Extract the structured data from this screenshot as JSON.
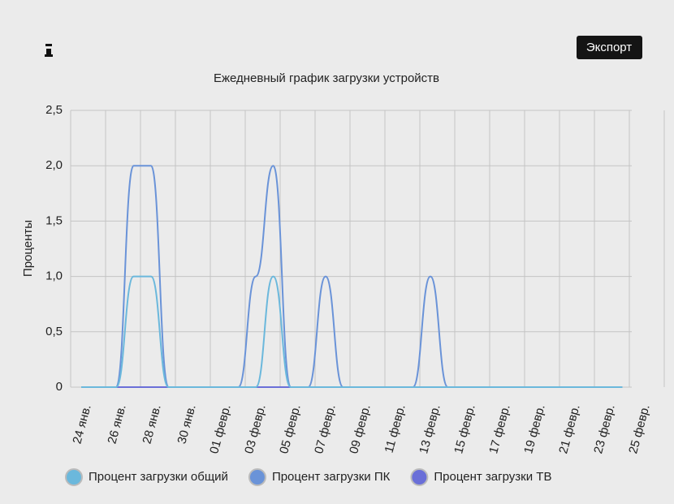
{
  "export_button": "Экспорт",
  "chart_data": {
    "type": "line",
    "title": "Ежедневный график загрузки устройств",
    "ylabel": "Проценты",
    "categories": [
      "24 янв.",
      null,
      "26 янв.",
      null,
      "28 янв.",
      null,
      "30 янв.",
      null,
      "01 февр.",
      null,
      "03 февр.",
      null,
      "05 февр.",
      null,
      "07 февр.",
      null,
      "09 февр.",
      null,
      "11 февр.",
      null,
      "13 февр.",
      null,
      "15 февр.",
      null,
      "17 февр.",
      null,
      "19 февр.",
      null,
      "21 февр.",
      null,
      "23 февр.",
      null,
      "25 февр."
    ],
    "series": [
      {
        "name": "Процент загрузки общий",
        "color": "#6bb8dc",
        "values": [
          0,
          0,
          0,
          1,
          1,
          0,
          0,
          0,
          0,
          0,
          0,
          1,
          0,
          0,
          0,
          0,
          0,
          0,
          0,
          0,
          0,
          0,
          0,
          0,
          0,
          0,
          0,
          0,
          0,
          0,
          0,
          0,
          null
        ]
      },
      {
        "name": "Процент загрузки ПК",
        "color": "#6a93d8",
        "values": [
          0,
          0,
          0,
          2,
          2,
          0,
          0,
          0,
          0,
          0,
          1,
          2,
          0,
          0,
          1,
          0,
          0,
          0,
          0,
          0,
          1,
          0,
          0,
          0,
          0,
          0,
          0,
          0,
          0,
          0,
          0,
          0,
          null
        ]
      },
      {
        "name": "Процент загрузки ТВ",
        "color": "#6a6fd8",
        "values": [
          0,
          0,
          0,
          0,
          0,
          0,
          0,
          0,
          0,
          0,
          0,
          0,
          0,
          0,
          0,
          0,
          0,
          0,
          0,
          0,
          0,
          0,
          0,
          0,
          0,
          0,
          0,
          0,
          0,
          0,
          0,
          0,
          null
        ]
      }
    ],
    "ylim": [
      0,
      2.5
    ],
    "yticks": [
      0,
      {
        "value": 0.5,
        "label": "0,5"
      },
      {
        "value": 1,
        "label": "1,0"
      },
      {
        "value": 1.5,
        "label": "1,5"
      },
      {
        "value": 2,
        "label": "2,0"
      },
      {
        "value": 2.5,
        "label": "2,5"
      }
    ],
    "grid": true
  }
}
